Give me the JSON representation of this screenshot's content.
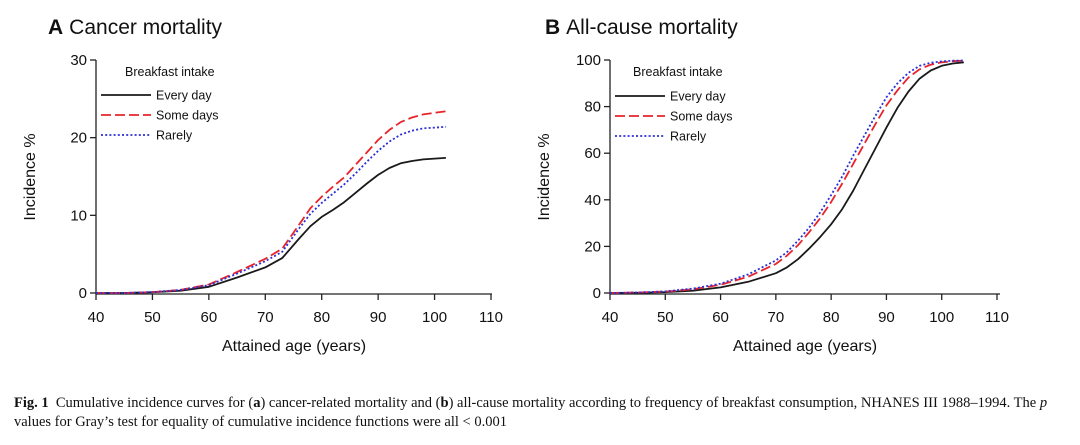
{
  "chart_data": [
    {
      "type": "line",
      "panel_letter": "A",
      "title": "Cancer mortality",
      "xlabel": "Attained age (years)",
      "ylabel": "Incidence %",
      "xlim": [
        40,
        110
      ],
      "ylim": [
        0,
        30
      ],
      "xticks": [
        40,
        50,
        60,
        70,
        80,
        90,
        100,
        110
      ],
      "yticks": [
        0,
        10,
        20,
        30
      ],
      "legend_title": "Breakfast intake",
      "legend_position": "top-left",
      "series": [
        {
          "name": "Every day",
          "color": "#1a1a1a",
          "style": "solid",
          "x": [
            40,
            45,
            50,
            55,
            60,
            65,
            70,
            73,
            76,
            78,
            80,
            82,
            84,
            86,
            88,
            90,
            92,
            94,
            96,
            98,
            100,
            102
          ],
          "y": [
            0,
            0,
            0.1,
            0.3,
            0.8,
            2.0,
            3.3,
            4.5,
            7.0,
            8.6,
            9.8,
            10.7,
            11.7,
            12.9,
            14.1,
            15.2,
            16.1,
            16.7,
            17.0,
            17.2,
            17.3,
            17.4
          ]
        },
        {
          "name": "Some days",
          "color": "#e8242a",
          "style": "dashed",
          "x": [
            40,
            45,
            50,
            55,
            60,
            65,
            70,
            73,
            76,
            78,
            80,
            82,
            84,
            86,
            88,
            90,
            92,
            94,
            96,
            98,
            100,
            102
          ],
          "y": [
            0,
            0,
            0.1,
            0.4,
            1.1,
            2.7,
            4.4,
            5.7,
            8.8,
            10.9,
            12.4,
            13.7,
            14.9,
            16.5,
            18.1,
            19.7,
            21.0,
            22.0,
            22.6,
            23.0,
            23.2,
            23.4
          ]
        },
        {
          "name": "Rarely",
          "color": "#2b2fd6",
          "style": "dotted",
          "x": [
            40,
            45,
            50,
            55,
            60,
            65,
            70,
            73,
            76,
            78,
            80,
            82,
            84,
            86,
            88,
            90,
            92,
            94,
            96,
            98,
            100,
            102
          ],
          "y": [
            0,
            0,
            0.1,
            0.4,
            1.0,
            2.5,
            4.1,
            5.3,
            8.3,
            10.2,
            11.6,
            12.8,
            14.0,
            15.4,
            16.9,
            18.3,
            19.5,
            20.4,
            20.9,
            21.2,
            21.3,
            21.4
          ]
        }
      ]
    },
    {
      "type": "line",
      "panel_letter": "B",
      "title": "All-cause mortality",
      "xlabel": "Attained age (years)",
      "ylabel": "Incidence %",
      "xlim": [
        40,
        110
      ],
      "ylim": [
        0,
        100
      ],
      "xticks": [
        40,
        50,
        60,
        70,
        80,
        90,
        100,
        110
      ],
      "yticks": [
        0,
        20,
        40,
        60,
        80,
        100
      ],
      "legend_title": "Breakfast intake",
      "legend_position": "top-left",
      "series": [
        {
          "name": "Every day",
          "color": "#1a1a1a",
          "style": "solid",
          "x": [
            40,
            45,
            50,
            55,
            60,
            65,
            70,
            72,
            74,
            76,
            78,
            80,
            82,
            84,
            86,
            88,
            90,
            92,
            94,
            96,
            98,
            100,
            102,
            104
          ],
          "y": [
            0,
            0.1,
            0.4,
            1.0,
            2.4,
            4.8,
            8.5,
            11.0,
            14.5,
            19.0,
            24.0,
            29.5,
            36.0,
            44.0,
            53.0,
            62.0,
            71.0,
            79.5,
            86.5,
            92.0,
            95.5,
            97.5,
            98.5,
            99.0
          ]
        },
        {
          "name": "Some days",
          "color": "#e8242a",
          "style": "dashed",
          "x": [
            40,
            45,
            50,
            55,
            60,
            65,
            70,
            72,
            74,
            76,
            78,
            80,
            82,
            84,
            86,
            88,
            90,
            92,
            94,
            96,
            98,
            100,
            102,
            104
          ],
          "y": [
            0,
            0.2,
            0.6,
            1.6,
            3.5,
            7.0,
            12.5,
            16.0,
            20.5,
            26.0,
            32.0,
            39.0,
            47.0,
            55.5,
            64.0,
            72.5,
            80.5,
            87.0,
            92.5,
            96.0,
            98.0,
            99.0,
            99.5,
            99.7
          ]
        },
        {
          "name": "Rarely",
          "color": "#2b2fd6",
          "style": "dotted",
          "x": [
            40,
            45,
            50,
            55,
            60,
            65,
            70,
            72,
            74,
            76,
            78,
            80,
            82,
            84,
            86,
            88,
            90,
            92,
            94,
            96,
            98,
            100,
            102,
            104
          ],
          "y": [
            0,
            0.2,
            0.7,
            1.9,
            4.0,
            8.0,
            14.0,
            17.5,
            22.5,
            28.0,
            34.5,
            42.0,
            50.0,
            59.0,
            67.5,
            76.0,
            84.0,
            90.0,
            94.5,
            97.5,
            98.8,
            99.4,
            99.7,
            99.8
          ]
        }
      ]
    }
  ],
  "caption": {
    "fig_label": "Fig. 1",
    "text_1": "Cumulative incidence curves for (",
    "a": "a",
    "text_2": ") cancer-related mortality and (",
    "b": "b",
    "text_3": ") all-cause mortality according to frequency of breakfast consumption, NHANES III 1988–1994. The ",
    "p": "p",
    "text_4": " values for Gray’s test for equality of cumulative incidence functions were all < 0.001"
  }
}
